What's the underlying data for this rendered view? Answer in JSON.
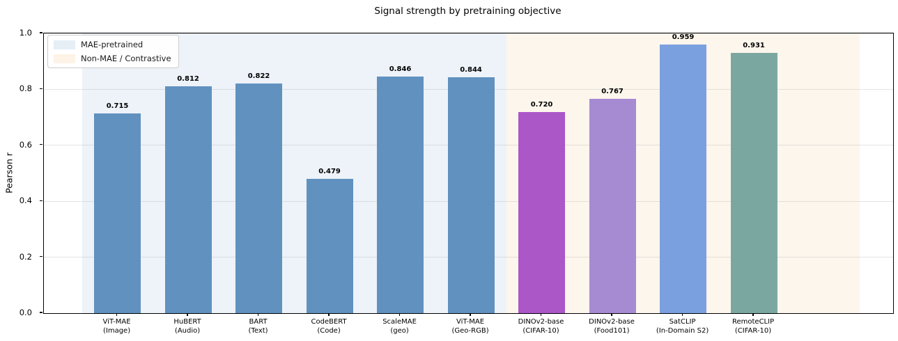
{
  "chart_data": {
    "type": "bar",
    "title": "Signal strength by pretraining objective",
    "xlabel": "",
    "ylabel": "Pearson r",
    "ylim": [
      0.0,
      1.0
    ],
    "ytick_values": [
      0.0,
      0.2,
      0.4,
      0.6,
      0.8,
      1.0
    ],
    "ytick_labels": [
      "0.0",
      "0.2",
      "0.4",
      "0.6",
      "0.8",
      "1.0"
    ],
    "grid": "horizontal",
    "legend_position": "upper-left",
    "categories": [
      "ViT-MAE\n(Image)",
      "HuBERT\n(Audio)",
      "BART\n(Text)",
      "CodeBERT\n(Code)",
      "ScaleMAE\n(geo)",
      "ViT-MAE\n(Geo-RGB)",
      "DINOv2-base\n(CIFAR-10)",
      "DINOv2-base\n(Food101)",
      "SatCLIP\n(In-Domain S2)",
      "RemoteCLIP\n(CIFAR-10)"
    ],
    "values": [
      0.715,
      0.812,
      0.822,
      0.479,
      0.846,
      0.844,
      0.72,
      0.767,
      0.959,
      0.931
    ],
    "value_labels": [
      "0.715",
      "0.812",
      "0.822",
      "0.479",
      "0.846",
      "0.844",
      "0.720",
      "0.767",
      "0.959",
      "0.931"
    ],
    "bar_colors": [
      "#6191bf",
      "#6191bf",
      "#6191bf",
      "#6191bf",
      "#6191bf",
      "#6191bf",
      "#ab57c8",
      "#a78bd2",
      "#7ba0e0",
      "#7aa8a1"
    ],
    "regions": [
      {
        "label": "MAE-pretrained",
        "x_start": -0.5,
        "x_end": 5.5,
        "color": "#edf3f9"
      },
      {
        "label": "Non-MAE / Contrastive",
        "x_start": 5.5,
        "x_end": 10.5,
        "color": "#fdf6ed"
      }
    ],
    "legend": {
      "items": [
        {
          "label": "MAE-pretrained",
          "swatch_color": "#e6eef6"
        },
        {
          "label": "Non-MAE / Contrastive",
          "swatch_color": "#fdf3e6"
        }
      ]
    },
    "xlim": [
      -1.04,
      10.97
    ],
    "bar_width_units": 0.66
  }
}
